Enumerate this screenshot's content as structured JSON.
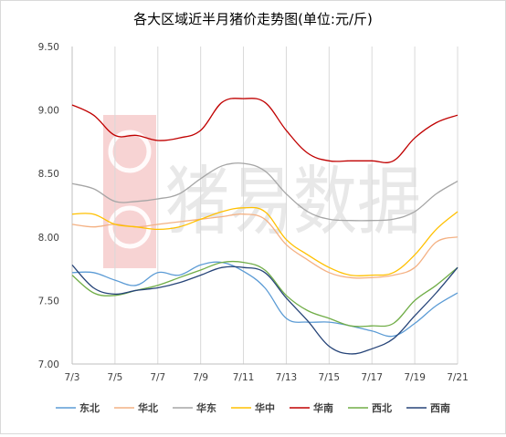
{
  "chart_data": {
    "type": "line",
    "title": "各大区域近半月猪价走势图(单位:元/斤)",
    "xlabel": "",
    "ylabel": "",
    "ylim": [
      7.0,
      9.5
    ],
    "yticks": [
      "7.00",
      "7.50",
      "8.00",
      "8.50",
      "9.00",
      "9.50"
    ],
    "x": [
      "7/3",
      "7/4",
      "7/5",
      "7/6",
      "7/7",
      "7/8",
      "7/9",
      "7/10",
      "7/11",
      "7/12",
      "7/13",
      "7/14",
      "7/15",
      "7/16",
      "7/17",
      "7/18",
      "7/19",
      "7/20",
      "7/21"
    ],
    "xticks": [
      "7/3",
      "7/5",
      "7/7",
      "7/9",
      "7/11",
      "7/13",
      "7/15",
      "7/17",
      "7/19",
      "7/21"
    ],
    "grid": {
      "vertical": true,
      "horizontal": false
    },
    "legend_position": "bottom",
    "watermark": "猪易数据",
    "series": [
      {
        "name": "东北",
        "color": "#5b9bd5",
        "values": [
          7.72,
          7.72,
          7.66,
          7.62,
          7.72,
          7.7,
          7.78,
          7.8,
          7.73,
          7.6,
          7.36,
          7.33,
          7.33,
          7.3,
          7.26,
          7.22,
          7.32,
          7.46,
          7.56
        ]
      },
      {
        "name": "华北",
        "color": "#f4b183",
        "values": [
          8.1,
          8.08,
          8.1,
          8.08,
          8.1,
          8.12,
          8.14,
          8.16,
          8.18,
          8.14,
          7.94,
          7.82,
          7.72,
          7.68,
          7.68,
          7.7,
          7.76,
          7.96,
          8.0
        ]
      },
      {
        "name": "华东",
        "color": "#a5a5a5",
        "values": [
          8.42,
          8.38,
          8.28,
          8.28,
          8.3,
          8.34,
          8.46,
          8.56,
          8.58,
          8.52,
          8.34,
          8.2,
          8.14,
          8.13,
          8.13,
          8.14,
          8.2,
          8.34,
          8.44
        ]
      },
      {
        "name": "华中",
        "color": "#ffc000",
        "values": [
          8.18,
          8.18,
          8.1,
          8.08,
          8.06,
          8.08,
          8.14,
          8.2,
          8.23,
          8.2,
          7.98,
          7.86,
          7.76,
          7.7,
          7.7,
          7.72,
          7.86,
          8.06,
          8.2
        ]
      },
      {
        "name": "华南",
        "color": "#c00000",
        "values": [
          9.04,
          8.96,
          8.8,
          8.8,
          8.76,
          8.78,
          8.84,
          9.06,
          9.09,
          9.06,
          8.84,
          8.66,
          8.6,
          8.6,
          8.6,
          8.6,
          8.78,
          8.9,
          8.96
        ]
      },
      {
        "name": "西北",
        "color": "#70ad47",
        "values": [
          7.7,
          7.56,
          7.54,
          7.58,
          7.62,
          7.68,
          7.74,
          7.8,
          7.8,
          7.74,
          7.54,
          7.42,
          7.36,
          7.3,
          7.3,
          7.32,
          7.5,
          7.62,
          7.76
        ]
      },
      {
        "name": "西南",
        "color": "#264478",
        "values": [
          7.78,
          7.6,
          7.55,
          7.58,
          7.6,
          7.64,
          7.7,
          7.76,
          7.76,
          7.72,
          7.52,
          7.34,
          7.14,
          7.08,
          7.12,
          7.2,
          7.38,
          7.56,
          7.76
        ]
      }
    ]
  }
}
